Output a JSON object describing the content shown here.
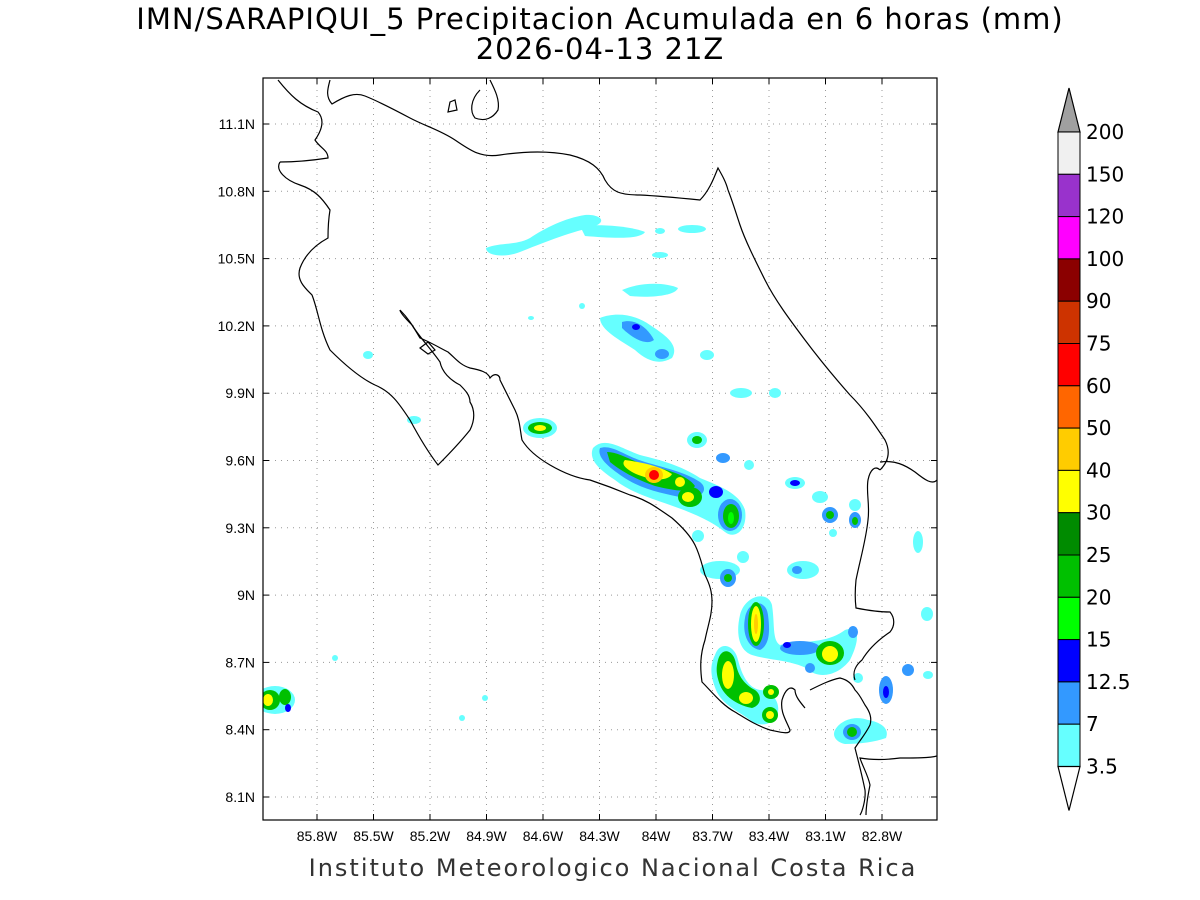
{
  "title": {
    "line1": "IMN/SARAPIQUI_5 Precipitacion Acumulada en 6 horas (mm)",
    "line2": "2026-04-13 21Z"
  },
  "footer": "Instituto Meteorologico Nacional Costa Rica",
  "map": {
    "lat_ticks": [
      "11.1N",
      "10.8N",
      "10.5N",
      "10.2N",
      "9.9N",
      "9.6N",
      "9.3N",
      "9N",
      "8.7N",
      "8.4N",
      "8.1N"
    ],
    "lon_ticks": [
      "85.8W",
      "85.5W",
      "85.2W",
      "84.9W",
      "84.6W",
      "84.3W",
      "84W",
      "83.7W",
      "83.4W",
      "83.1W",
      "82.8W"
    ],
    "gridlines": "dotted"
  },
  "colorbar": {
    "labels": [
      "200",
      "150",
      "120",
      "100",
      "90",
      "75",
      "60",
      "50",
      "40",
      "30",
      "25",
      "20",
      "15",
      "12.5",
      "7",
      "3.5"
    ],
    "colors": [
      "#a0a0a0",
      "#f0f0f0",
      "#9932cc",
      "#ff00ff",
      "#8b0000",
      "#cd3300",
      "#ff0000",
      "#ff6600",
      "#ffcc00",
      "#ffff00",
      "#008b00",
      "#00c000",
      "#00ff00",
      "#0000ff",
      "#3399ff",
      "#66ffff"
    ]
  }
}
